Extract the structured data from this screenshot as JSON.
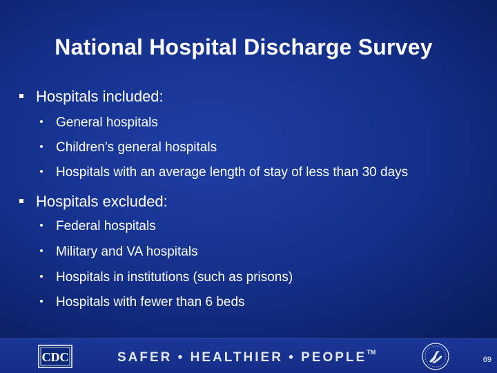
{
  "slide": {
    "title": "National Hospital Discharge Survey",
    "sections": [
      {
        "heading": "Hospitals included:",
        "items": [
          "General hospitals",
          "Children’s general hospitals",
          "Hospitals with an average length of stay of less than 30 days"
        ]
      },
      {
        "heading": "Hospitals excluded:",
        "items": [
          "Federal hospitals",
          "Military and VA hospitals",
          "Hospitals in institutions (such as prisons)",
          "Hospitals with fewer than 6 beds"
        ]
      }
    ]
  },
  "footer": {
    "logo_text": "CDC",
    "slogan": "SAFER • HEALTHIER • PEOPLE",
    "trademark": "TM",
    "page_number": "69"
  },
  "colors": {
    "background": "#14308a",
    "text": "#ffffff"
  },
  "icons": {
    "left_logo": "cdc-logo-icon",
    "right_logo": "hhs-seal-icon"
  }
}
